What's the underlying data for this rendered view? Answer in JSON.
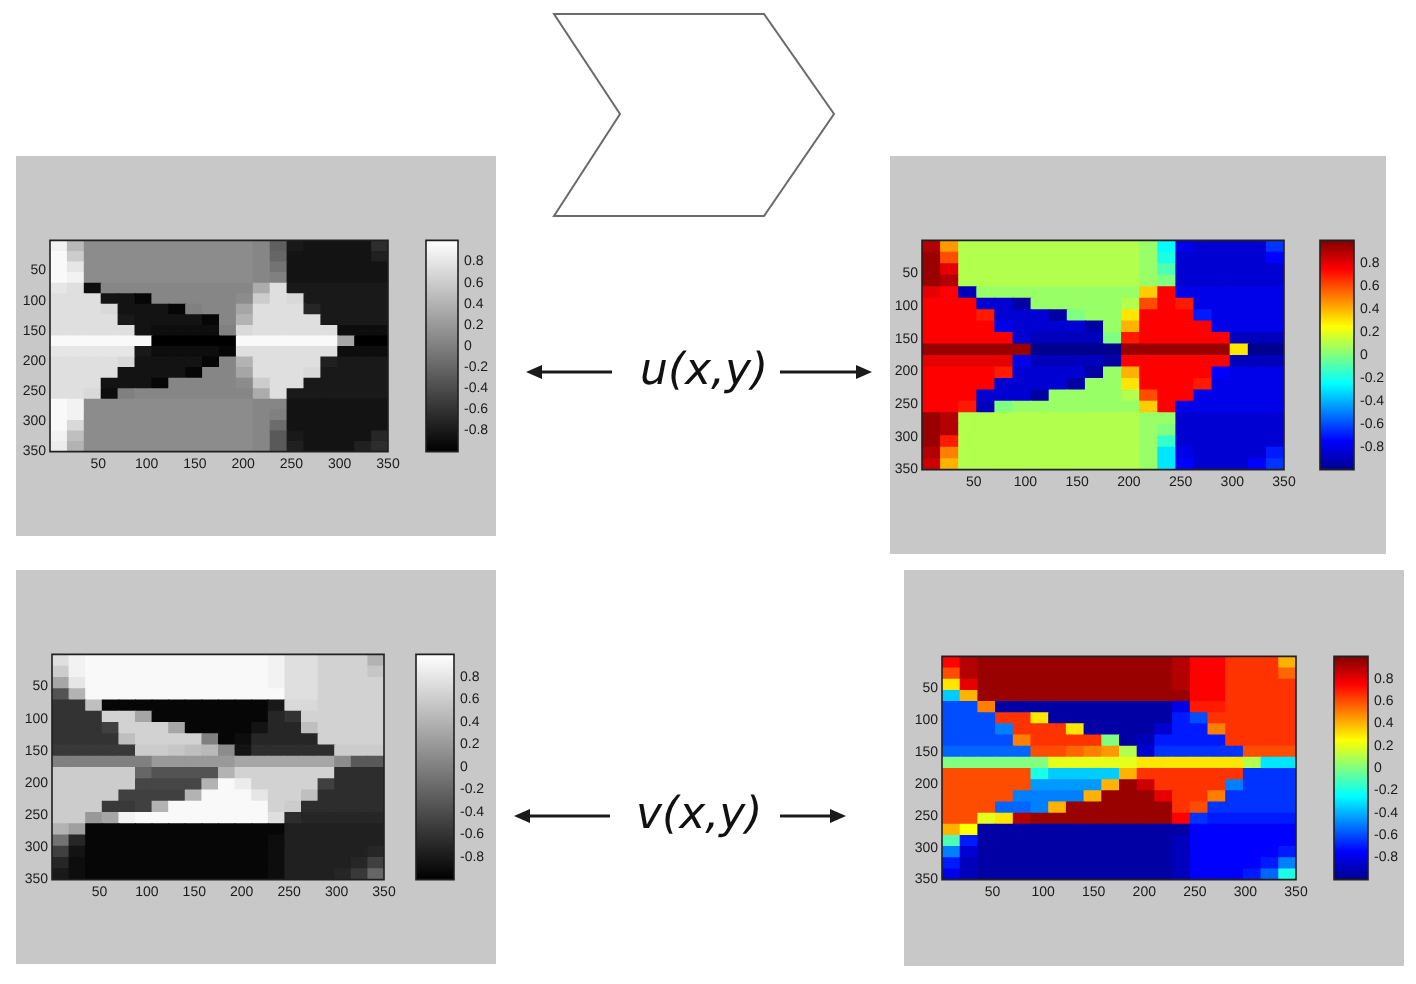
{
  "chart_data": [
    {
      "type": "heatmap",
      "xlim": [
        0,
        350
      ],
      "ylim": [
        350,
        0
      ],
      "xticks": [
        50,
        100,
        150,
        200,
        250,
        300,
        350
      ],
      "yticks": [
        50,
        100,
        150,
        200,
        250,
        300,
        350
      ],
      "clim": [
        -1,
        1
      ],
      "cticks": [
        -0.8,
        -0.6,
        -0.4,
        -0.2,
        0,
        0.2,
        0.4,
        0.6,
        0.8
      ],
      "colors": [
        "#000000",
        "#ffffff"
      ],
      "cells": [
        [
          0.9,
          0.45,
          0.1,
          0.1,
          0.1,
          0.1,
          0.1,
          0.1,
          0.1,
          0.1,
          0.1,
          0.1,
          0.05,
          -0.25,
          -0.8,
          -0.85,
          -0.85,
          -0.85,
          -0.85,
          -0.65
        ],
        [
          0.95,
          0.6,
          0.1,
          0.1,
          0.1,
          0.1,
          0.1,
          0.1,
          0.1,
          0.1,
          0.1,
          0.1,
          0.05,
          -0.2,
          -0.85,
          -0.85,
          -0.85,
          -0.85,
          -0.85,
          -0.75
        ],
        [
          0.95,
          0.8,
          0.1,
          0.1,
          0.1,
          0.1,
          0.1,
          0.1,
          0.1,
          0.1,
          0.1,
          0.1,
          0.05,
          -0.1,
          -0.85,
          -0.85,
          -0.85,
          -0.85,
          -0.85,
          -0.85
        ],
        [
          0.95,
          0.9,
          0.1,
          0.1,
          0.1,
          0.1,
          0.1,
          0.1,
          0.1,
          0.1,
          0.1,
          0.1,
          0.05,
          0,
          -0.85,
          -0.85,
          -0.85,
          -0.85,
          -0.85,
          -0.85
        ],
        [
          0.8,
          0.75,
          -0.9,
          0.05,
          0.05,
          0.05,
          0.05,
          0.05,
          0.05,
          0.05,
          0.05,
          0.05,
          0.35,
          0.75,
          -0.8,
          -0.8,
          -0.8,
          -0.8,
          -0.8,
          -0.8
        ],
        [
          0.75,
          0.75,
          0.75,
          -0.85,
          -0.85,
          -0.95,
          0.05,
          0.05,
          0.05,
          0.05,
          0.05,
          0.1,
          0.6,
          0.75,
          0.7,
          -0.8,
          -0.8,
          -0.8,
          -0.8,
          -0.8
        ],
        [
          0.75,
          0.75,
          0.75,
          0.7,
          -0.85,
          -0.85,
          -0.85,
          -0.95,
          0,
          0.05,
          0.05,
          0.3,
          0.75,
          0.75,
          0.75,
          -0.7,
          -0.8,
          -0.8,
          -0.8,
          -0.8
        ],
        [
          0.75,
          0.75,
          0.75,
          0.75,
          -0.8,
          -0.85,
          -0.85,
          -0.85,
          -0.85,
          -0.95,
          0.05,
          0.4,
          0.75,
          0.75,
          0.75,
          0.75,
          -0.8,
          -0.8,
          -0.8,
          -0.8
        ],
        [
          0.75,
          0.75,
          0.75,
          0.75,
          0.75,
          -0.85,
          -0.9,
          -0.9,
          -0.9,
          -0.9,
          0,
          0.7,
          0.75,
          0.75,
          0.75,
          0.75,
          0.75,
          -0.9,
          -0.9,
          -0.9
        ],
        [
          0.95,
          0.95,
          0.95,
          0.95,
          0.95,
          0.95,
          -1,
          -1,
          -1,
          -1,
          -1,
          0.95,
          0.95,
          0.95,
          0.95,
          0.95,
          0.95,
          0.3,
          -1,
          -1
        ],
        [
          0.8,
          0.8,
          0.8,
          0.8,
          0.8,
          -0.8,
          -0.9,
          -0.9,
          -0.9,
          -0.9,
          -0.95,
          0.75,
          0.75,
          0.75,
          0.75,
          0.75,
          0.75,
          -0.9,
          -0.9,
          -0.9
        ],
        [
          0.75,
          0.75,
          0.75,
          0.75,
          0.7,
          -0.85,
          -0.85,
          -0.85,
          -0.85,
          -0.95,
          0.05,
          0.4,
          0.75,
          0.75,
          0.75,
          0.75,
          -0.75,
          -0.8,
          -0.8,
          -0.8
        ],
        [
          0.75,
          0.75,
          0.75,
          0.75,
          -0.85,
          -0.85,
          -0.85,
          -0.85,
          -0.95,
          0.05,
          0.05,
          0.3,
          0.75,
          0.75,
          0.75,
          0.7,
          -0.8,
          -0.8,
          -0.8,
          -0.8
        ],
        [
          0.75,
          0.75,
          0.75,
          -0.85,
          -0.85,
          -0.85,
          -0.95,
          0.05,
          0.05,
          0.05,
          0.05,
          0.1,
          0.6,
          0.75,
          0.75,
          -0.8,
          -0.8,
          -0.8,
          -0.8,
          -0.8
        ],
        [
          0.75,
          0.75,
          0.7,
          -0.9,
          0,
          0.05,
          0.05,
          0.05,
          0.05,
          0.05,
          0.05,
          0.05,
          0.35,
          0.75,
          -0.8,
          -0.8,
          -0.8,
          -0.8,
          -0.8,
          -0.8
        ],
        [
          0.95,
          0.9,
          0.1,
          0.1,
          0.1,
          0.1,
          0.1,
          0.1,
          0.1,
          0.1,
          0.1,
          0.1,
          0.05,
          0.05,
          -0.85,
          -0.85,
          -0.85,
          -0.85,
          -0.85,
          -0.85
        ],
        [
          0.95,
          0.9,
          0.1,
          0.1,
          0.1,
          0.1,
          0.1,
          0.1,
          0.1,
          0.1,
          0.1,
          0.1,
          0.05,
          0,
          -0.85,
          -0.85,
          -0.85,
          -0.85,
          -0.85,
          -0.85
        ],
        [
          0.95,
          0.7,
          0.1,
          0.1,
          0.1,
          0.1,
          0.1,
          0.1,
          0.1,
          0.1,
          0.1,
          0.1,
          0.05,
          -0.15,
          -0.85,
          -0.85,
          -0.85,
          -0.85,
          -0.85,
          -0.85
        ],
        [
          0.9,
          0.5,
          0.1,
          0.1,
          0.1,
          0.1,
          0.1,
          0.1,
          0.1,
          0.1,
          0.1,
          0.1,
          0.05,
          -0.3,
          -0.8,
          -0.85,
          -0.85,
          -0.85,
          -0.85,
          -0.7
        ],
        [
          0.85,
          0.4,
          0.1,
          0.1,
          0.1,
          0.1,
          0.1,
          0.1,
          0.1,
          0.1,
          0.1,
          0.1,
          0.05,
          -0.3,
          -0.75,
          -0.85,
          -0.85,
          -0.85,
          -0.75,
          -0.65
        ]
      ]
    },
    {
      "type": "other",
      "annotations": [
        "u(x,y)"
      ]
    },
    {
      "type": "heatmap",
      "xlim": [
        0,
        350
      ],
      "ylim": [
        350,
        0
      ],
      "xticks": [
        50,
        100,
        150,
        200,
        250,
        300,
        350
      ],
      "yticks": [
        50,
        100,
        150,
        200,
        250,
        300,
        350
      ],
      "clim": [
        -1,
        1
      ],
      "cticks": [
        -0.8,
        -0.6,
        -0.4,
        -0.2,
        0,
        0.2,
        0.4,
        0.6,
        0.8
      ],
      "colors": [
        "#00008f",
        "#0000ff",
        "#0080ff",
        "#00ffff",
        "#80ff80",
        "#ffff00",
        "#ff8000",
        "#ff0000",
        "#800000"
      ],
      "cells": [
        [
          0.9,
          0.45,
          0.1,
          0.1,
          0.1,
          0.1,
          0.1,
          0.1,
          0.1,
          0.1,
          0.1,
          0.1,
          0.05,
          -0.25,
          -0.8,
          -0.85,
          -0.85,
          -0.85,
          -0.85,
          -0.65
        ],
        [
          0.95,
          0.6,
          0.1,
          0.1,
          0.1,
          0.1,
          0.1,
          0.1,
          0.1,
          0.1,
          0.1,
          0.1,
          0.05,
          -0.2,
          -0.85,
          -0.85,
          -0.85,
          -0.85,
          -0.85,
          -0.75
        ],
        [
          0.95,
          0.8,
          0.1,
          0.1,
          0.1,
          0.1,
          0.1,
          0.1,
          0.1,
          0.1,
          0.1,
          0.1,
          0.05,
          -0.1,
          -0.85,
          -0.85,
          -0.85,
          -0.85,
          -0.85,
          -0.85
        ],
        [
          0.95,
          0.9,
          0.1,
          0.1,
          0.1,
          0.1,
          0.1,
          0.1,
          0.1,
          0.1,
          0.1,
          0.1,
          0.05,
          0,
          -0.85,
          -0.85,
          -0.85,
          -0.85,
          -0.85,
          -0.85
        ],
        [
          0.8,
          0.75,
          -0.9,
          0.05,
          0.05,
          0.05,
          0.05,
          0.05,
          0.05,
          0.05,
          0.05,
          0.05,
          0.35,
          0.75,
          -0.8,
          -0.8,
          -0.8,
          -0.8,
          -0.8,
          -0.8
        ],
        [
          0.75,
          0.75,
          0.75,
          -0.85,
          -0.85,
          -0.95,
          0.05,
          0.05,
          0.05,
          0.05,
          0.05,
          0.1,
          0.6,
          0.75,
          0.7,
          -0.8,
          -0.8,
          -0.8,
          -0.8,
          -0.8
        ],
        [
          0.75,
          0.75,
          0.75,
          0.7,
          -0.85,
          -0.85,
          -0.85,
          -0.95,
          0,
          0.05,
          0.05,
          0.3,
          0.75,
          0.75,
          0.75,
          -0.7,
          -0.8,
          -0.8,
          -0.8,
          -0.8
        ],
        [
          0.75,
          0.75,
          0.75,
          0.75,
          -0.8,
          -0.85,
          -0.85,
          -0.85,
          -0.85,
          -0.95,
          0.05,
          0.4,
          0.75,
          0.75,
          0.75,
          0.75,
          -0.8,
          -0.8,
          -0.8,
          -0.8
        ],
        [
          0.75,
          0.75,
          0.75,
          0.75,
          0.75,
          -0.85,
          -0.9,
          -0.9,
          -0.9,
          -0.9,
          0,
          0.7,
          0.75,
          0.75,
          0.75,
          0.75,
          0.75,
          -0.9,
          -0.9,
          -0.9
        ],
        [
          0.95,
          0.95,
          0.95,
          0.95,
          0.95,
          0.95,
          -1,
          -1,
          -1,
          -1,
          -1,
          0.95,
          0.95,
          0.95,
          0.95,
          0.95,
          0.95,
          0.3,
          -1,
          -1
        ],
        [
          0.8,
          0.8,
          0.8,
          0.8,
          0.8,
          -0.8,
          -0.9,
          -0.9,
          -0.9,
          -0.9,
          -0.95,
          0.75,
          0.75,
          0.75,
          0.75,
          0.75,
          0.75,
          -0.9,
          -0.9,
          -0.9
        ],
        [
          0.75,
          0.75,
          0.75,
          0.75,
          0.7,
          -0.85,
          -0.85,
          -0.85,
          -0.85,
          -0.95,
          0.05,
          0.4,
          0.75,
          0.75,
          0.75,
          0.75,
          -0.75,
          -0.8,
          -0.8,
          -0.8
        ],
        [
          0.75,
          0.75,
          0.75,
          0.75,
          -0.85,
          -0.85,
          -0.85,
          -0.85,
          -0.95,
          0.05,
          0.05,
          0.3,
          0.75,
          0.75,
          0.75,
          0.7,
          -0.8,
          -0.8,
          -0.8,
          -0.8
        ],
        [
          0.75,
          0.75,
          0.75,
          -0.85,
          -0.85,
          -0.85,
          -0.95,
          0.05,
          0.05,
          0.05,
          0.05,
          0.1,
          0.6,
          0.75,
          0.75,
          -0.8,
          -0.8,
          -0.8,
          -0.8,
          -0.8
        ],
        [
          0.75,
          0.75,
          0.7,
          -0.9,
          0,
          0.05,
          0.05,
          0.05,
          0.05,
          0.05,
          0.05,
          0.05,
          0.35,
          0.75,
          -0.8,
          -0.8,
          -0.8,
          -0.8,
          -0.8,
          -0.8
        ],
        [
          0.95,
          0.9,
          0.1,
          0.1,
          0.1,
          0.1,
          0.1,
          0.1,
          0.1,
          0.1,
          0.1,
          0.1,
          0.05,
          0.05,
          -0.85,
          -0.85,
          -0.85,
          -0.85,
          -0.85,
          -0.85
        ],
        [
          0.95,
          0.9,
          0.1,
          0.1,
          0.1,
          0.1,
          0.1,
          0.1,
          0.1,
          0.1,
          0.1,
          0.1,
          0.05,
          0,
          -0.85,
          -0.85,
          -0.85,
          -0.85,
          -0.85,
          -0.85
        ],
        [
          0.95,
          0.7,
          0.1,
          0.1,
          0.1,
          0.1,
          0.1,
          0.1,
          0.1,
          0.1,
          0.1,
          0.1,
          0.05,
          -0.15,
          -0.85,
          -0.85,
          -0.85,
          -0.85,
          -0.85,
          -0.85
        ],
        [
          0.9,
          0.5,
          0.1,
          0.1,
          0.1,
          0.1,
          0.1,
          0.1,
          0.1,
          0.1,
          0.1,
          0.1,
          0.05,
          -0.3,
          -0.8,
          -0.85,
          -0.85,
          -0.85,
          -0.85,
          -0.7
        ],
        [
          0.85,
          0.4,
          0.1,
          0.1,
          0.1,
          0.1,
          0.1,
          0.1,
          0.1,
          0.1,
          0.1,
          0.1,
          0.05,
          -0.3,
          -0.75,
          -0.85,
          -0.85,
          -0.85,
          -0.75,
          -0.65
        ]
      ]
    },
    {
      "type": "heatmap",
      "xlim": [
        0,
        350
      ],
      "ylim": [
        350,
        0
      ],
      "xticks": [
        50,
        100,
        150,
        200,
        250,
        300,
        350
      ],
      "yticks": [
        50,
        100,
        150,
        200,
        250,
        300,
        350
      ],
      "clim": [
        -1,
        1
      ],
      "cticks": [
        -0.8,
        -0.6,
        -0.4,
        -0.2,
        0,
        0.2,
        0.4,
        0.6,
        0.8
      ],
      "colors": [
        "#000000",
        "#ffffff"
      ],
      "cells": [
        [
          0.75,
          0.9,
          0.95,
          0.95,
          0.95,
          0.95,
          0.95,
          0.95,
          0.95,
          0.95,
          0.95,
          0.95,
          0.95,
          0.9,
          0.75,
          0.75,
          0.65,
          0.65,
          0.65,
          0.4
        ],
        [
          0.6,
          0.9,
          0.95,
          0.95,
          0.95,
          0.95,
          0.95,
          0.95,
          0.95,
          0.95,
          0.95,
          0.95,
          0.95,
          0.9,
          0.75,
          0.75,
          0.65,
          0.65,
          0.65,
          0.55
        ],
        [
          0.3,
          0.8,
          0.95,
          0.95,
          0.95,
          0.95,
          0.95,
          0.95,
          0.95,
          0.95,
          0.95,
          0.95,
          0.95,
          0.9,
          0.75,
          0.75,
          0.65,
          0.65,
          0.65,
          0.65
        ],
        [
          -0.35,
          0.4,
          0.95,
          0.95,
          0.95,
          0.95,
          0.95,
          0.95,
          0.95,
          0.95,
          0.95,
          0.95,
          0.95,
          0.95,
          0.75,
          0.75,
          0.65,
          0.65,
          0.65,
          0.65
        ],
        [
          -0.6,
          -0.6,
          0.5,
          -0.95,
          -0.95,
          -0.95,
          -0.95,
          -0.95,
          -0.95,
          -0.95,
          -0.95,
          -0.95,
          -0.95,
          -0.8,
          0.7,
          0.7,
          0.65,
          0.65,
          0.65,
          0.65
        ],
        [
          -0.6,
          -0.6,
          -0.6,
          0.65,
          0.65,
          0.3,
          -0.95,
          -0.95,
          -0.95,
          -0.95,
          -0.95,
          -0.95,
          -0.95,
          -0.7,
          -0.6,
          0.65,
          0.65,
          0.65,
          0.65,
          0.65
        ],
        [
          -0.6,
          -0.6,
          -0.6,
          -0.5,
          0.65,
          0.65,
          0.65,
          0.3,
          -0.95,
          -0.95,
          -0.95,
          -0.95,
          -0.85,
          -0.7,
          -0.7,
          0.5,
          0.65,
          0.65,
          0.65,
          0.65
        ],
        [
          -0.6,
          -0.6,
          -0.6,
          -0.6,
          0.5,
          0.65,
          0.65,
          0.65,
          0.65,
          0,
          -0.95,
          -0.9,
          -0.7,
          -0.7,
          -0.7,
          -0.7,
          0.65,
          0.65,
          0.65,
          0.65
        ],
        [
          -0.55,
          -0.55,
          -0.55,
          -0.55,
          -0.55,
          0.6,
          0.6,
          0.55,
          0.5,
          0.45,
          0.1,
          -0.85,
          -0.65,
          -0.65,
          -0.65,
          -0.65,
          -0.65,
          0.6,
          0.6,
          0.6
        ],
        [
          0,
          0,
          0,
          0,
          0,
          0,
          0.2,
          0.2,
          0.2,
          0.2,
          0.2,
          0.3,
          0.3,
          0.3,
          0.3,
          0.3,
          0.3,
          0.1,
          -0.3,
          -0.3
        ],
        [
          0.6,
          0.6,
          0.6,
          0.6,
          0.6,
          -0.2,
          -0.35,
          -0.35,
          -0.35,
          -0.35,
          0.4,
          0.65,
          0.65,
          0.65,
          0.65,
          0.65,
          0.65,
          -0.65,
          -0.65,
          -0.65
        ],
        [
          0.6,
          0.6,
          0.6,
          0.6,
          0.6,
          -0.45,
          -0.45,
          -0.45,
          -0.45,
          0.4,
          0.95,
          0.85,
          0.65,
          0.65,
          0.65,
          0.65,
          -0.5,
          -0.65,
          -0.65,
          -0.65
        ],
        [
          0.6,
          0.6,
          0.6,
          0.6,
          -0.5,
          -0.5,
          -0.5,
          -0.5,
          0.4,
          0.95,
          0.95,
          0.95,
          0.8,
          0.65,
          0.65,
          0.5,
          -0.65,
          -0.65,
          -0.65,
          -0.65
        ],
        [
          0.6,
          0.6,
          0.6,
          -0.55,
          -0.55,
          -0.5,
          0.4,
          0.95,
          0.95,
          0.95,
          0.95,
          0.95,
          0.95,
          0.65,
          0.6,
          -0.65,
          -0.65,
          -0.65,
          -0.65,
          -0.65
        ],
        [
          0.6,
          0.6,
          0.2,
          0.3,
          0.9,
          0.95,
          0.95,
          0.95,
          0.95,
          0.95,
          0.95,
          0.95,
          0.95,
          0.75,
          -0.65,
          -0.7,
          -0.7,
          -0.7,
          -0.7,
          -0.7
        ],
        [
          0.4,
          0.25,
          -0.95,
          -0.95,
          -0.95,
          -0.95,
          -0.95,
          -0.95,
          -0.95,
          -0.95,
          -0.95,
          -0.95,
          -0.95,
          -0.95,
          -0.75,
          -0.75,
          -0.75,
          -0.75,
          -0.75,
          -0.75
        ],
        [
          -0.1,
          -0.7,
          -0.95,
          -0.95,
          -0.95,
          -0.95,
          -0.95,
          -0.95,
          -0.95,
          -0.95,
          -0.95,
          -0.95,
          -0.95,
          -0.9,
          -0.75,
          -0.75,
          -0.75,
          -0.75,
          -0.75,
          -0.75
        ],
        [
          -0.5,
          -0.85,
          -0.95,
          -0.95,
          -0.95,
          -0.95,
          -0.95,
          -0.95,
          -0.95,
          -0.95,
          -0.95,
          -0.95,
          -0.95,
          -0.9,
          -0.75,
          -0.75,
          -0.75,
          -0.75,
          -0.75,
          -0.7
        ],
        [
          -0.7,
          -0.9,
          -0.95,
          -0.95,
          -0.95,
          -0.95,
          -0.95,
          -0.95,
          -0.95,
          -0.95,
          -0.95,
          -0.95,
          -0.95,
          -0.9,
          -0.75,
          -0.75,
          -0.75,
          -0.75,
          -0.7,
          -0.5
        ],
        [
          -0.8,
          -0.9,
          -0.95,
          -0.95,
          -0.95,
          -0.95,
          -0.95,
          -0.95,
          -0.95,
          -0.95,
          -0.95,
          -0.95,
          -0.95,
          -0.9,
          -0.75,
          -0.75,
          -0.75,
          -0.7,
          -0.55,
          -0.2
        ]
      ]
    },
    {
      "type": "other",
      "annotations": [
        "v(x,y)"
      ]
    },
    {
      "type": "heatmap",
      "xlim": [
        0,
        350
      ],
      "ylim": [
        350,
        0
      ],
      "xticks": [
        50,
        100,
        150,
        200,
        250,
        300,
        350
      ],
      "yticks": [
        50,
        100,
        150,
        200,
        250,
        300,
        350
      ],
      "clim": [
        -1,
        1
      ],
      "cticks": [
        -0.8,
        -0.6,
        -0.4,
        -0.2,
        0,
        0.2,
        0.4,
        0.6,
        0.8
      ],
      "colors": [
        "#00008f",
        "#0000ff",
        "#0080ff",
        "#00ffff",
        "#80ff80",
        "#ffff00",
        "#ff8000",
        "#ff0000",
        "#800000"
      ],
      "cells": [
        [
          0.75,
          0.9,
          0.95,
          0.95,
          0.95,
          0.95,
          0.95,
          0.95,
          0.95,
          0.95,
          0.95,
          0.95,
          0.95,
          0.9,
          0.75,
          0.75,
          0.65,
          0.65,
          0.65,
          0.4
        ],
        [
          0.6,
          0.9,
          0.95,
          0.95,
          0.95,
          0.95,
          0.95,
          0.95,
          0.95,
          0.95,
          0.95,
          0.95,
          0.95,
          0.9,
          0.75,
          0.75,
          0.65,
          0.65,
          0.65,
          0.55
        ],
        [
          0.3,
          0.8,
          0.95,
          0.95,
          0.95,
          0.95,
          0.95,
          0.95,
          0.95,
          0.95,
          0.95,
          0.95,
          0.95,
          0.9,
          0.75,
          0.75,
          0.65,
          0.65,
          0.65,
          0.65
        ],
        [
          -0.35,
          0.4,
          0.95,
          0.95,
          0.95,
          0.95,
          0.95,
          0.95,
          0.95,
          0.95,
          0.95,
          0.95,
          0.95,
          0.95,
          0.75,
          0.75,
          0.65,
          0.65,
          0.65,
          0.65
        ],
        [
          -0.6,
          -0.6,
          0.5,
          -0.95,
          -0.95,
          -0.95,
          -0.95,
          -0.95,
          -0.95,
          -0.95,
          -0.95,
          -0.95,
          -0.95,
          -0.8,
          0.7,
          0.7,
          0.65,
          0.65,
          0.65,
          0.65
        ],
        [
          -0.6,
          -0.6,
          -0.6,
          0.65,
          0.65,
          0.3,
          -0.95,
          -0.95,
          -0.95,
          -0.95,
          -0.95,
          -0.95,
          -0.95,
          -0.7,
          -0.6,
          0.65,
          0.65,
          0.65,
          0.65,
          0.65
        ],
        [
          -0.6,
          -0.6,
          -0.6,
          -0.5,
          0.65,
          0.65,
          0.65,
          0.3,
          -0.95,
          -0.95,
          -0.95,
          -0.95,
          -0.85,
          -0.7,
          -0.7,
          0.5,
          0.65,
          0.65,
          0.65,
          0.65
        ],
        [
          -0.6,
          -0.6,
          -0.6,
          -0.6,
          0.5,
          0.65,
          0.65,
          0.65,
          0.65,
          0,
          -0.95,
          -0.9,
          -0.7,
          -0.7,
          -0.7,
          -0.7,
          0.65,
          0.65,
          0.65,
          0.65
        ],
        [
          -0.55,
          -0.55,
          -0.55,
          -0.55,
          -0.55,
          0.6,
          0.6,
          0.55,
          0.5,
          0.45,
          0.1,
          -0.85,
          -0.65,
          -0.65,
          -0.65,
          -0.65,
          -0.65,
          0.6,
          0.6,
          0.6
        ],
        [
          0,
          0,
          0,
          0,
          0,
          0,
          0.2,
          0.2,
          0.2,
          0.2,
          0.2,
          0.3,
          0.3,
          0.3,
          0.3,
          0.3,
          0.3,
          0.1,
          -0.3,
          -0.3
        ],
        [
          0.6,
          0.6,
          0.6,
          0.6,
          0.6,
          -0.2,
          -0.35,
          -0.35,
          -0.35,
          -0.35,
          0.4,
          0.65,
          0.65,
          0.65,
          0.65,
          0.65,
          0.65,
          -0.65,
          -0.65,
          -0.65
        ],
        [
          0.6,
          0.6,
          0.6,
          0.6,
          0.6,
          -0.45,
          -0.45,
          -0.45,
          -0.45,
          0.4,
          0.95,
          0.85,
          0.65,
          0.65,
          0.65,
          0.65,
          -0.5,
          -0.65,
          -0.65,
          -0.65
        ],
        [
          0.6,
          0.6,
          0.6,
          0.6,
          -0.5,
          -0.5,
          -0.5,
          -0.5,
          0.4,
          0.95,
          0.95,
          0.95,
          0.8,
          0.65,
          0.65,
          0.5,
          -0.65,
          -0.65,
          -0.65,
          -0.65
        ],
        [
          0.6,
          0.6,
          0.6,
          -0.55,
          -0.55,
          -0.5,
          0.4,
          0.95,
          0.95,
          0.95,
          0.95,
          0.95,
          0.95,
          0.65,
          0.6,
          -0.65,
          -0.65,
          -0.65,
          -0.65,
          -0.65
        ],
        [
          0.6,
          0.6,
          0.2,
          0.3,
          0.9,
          0.95,
          0.95,
          0.95,
          0.95,
          0.95,
          0.95,
          0.95,
          0.95,
          0.75,
          -0.65,
          -0.7,
          -0.7,
          -0.7,
          -0.7,
          -0.7
        ],
        [
          0.4,
          0.25,
          -0.95,
          -0.95,
          -0.95,
          -0.95,
          -0.95,
          -0.95,
          -0.95,
          -0.95,
          -0.95,
          -0.95,
          -0.95,
          -0.95,
          -0.75,
          -0.75,
          -0.75,
          -0.75,
          -0.75,
          -0.75
        ],
        [
          -0.1,
          -0.7,
          -0.95,
          -0.95,
          -0.95,
          -0.95,
          -0.95,
          -0.95,
          -0.95,
          -0.95,
          -0.95,
          -0.95,
          -0.95,
          -0.9,
          -0.75,
          -0.75,
          -0.75,
          -0.75,
          -0.75,
          -0.75
        ],
        [
          -0.5,
          -0.85,
          -0.95,
          -0.95,
          -0.95,
          -0.95,
          -0.95,
          -0.95,
          -0.95,
          -0.95,
          -0.95,
          -0.95,
          -0.95,
          -0.9,
          -0.75,
          -0.75,
          -0.75,
          -0.75,
          -0.75,
          -0.7
        ],
        [
          -0.7,
          -0.9,
          -0.95,
          -0.95,
          -0.95,
          -0.95,
          -0.95,
          -0.95,
          -0.95,
          -0.95,
          -0.95,
          -0.95,
          -0.95,
          -0.9,
          -0.75,
          -0.75,
          -0.75,
          -0.75,
          -0.7,
          -0.5
        ],
        [
          -0.8,
          -0.9,
          -0.95,
          -0.95,
          -0.95,
          -0.95,
          -0.95,
          -0.95,
          -0.95,
          -0.95,
          -0.95,
          -0.95,
          -0.95,
          -0.9,
          -0.75,
          -0.75,
          -0.75,
          -0.7,
          -0.55,
          -0.2
        ]
      ]
    }
  ]
}
